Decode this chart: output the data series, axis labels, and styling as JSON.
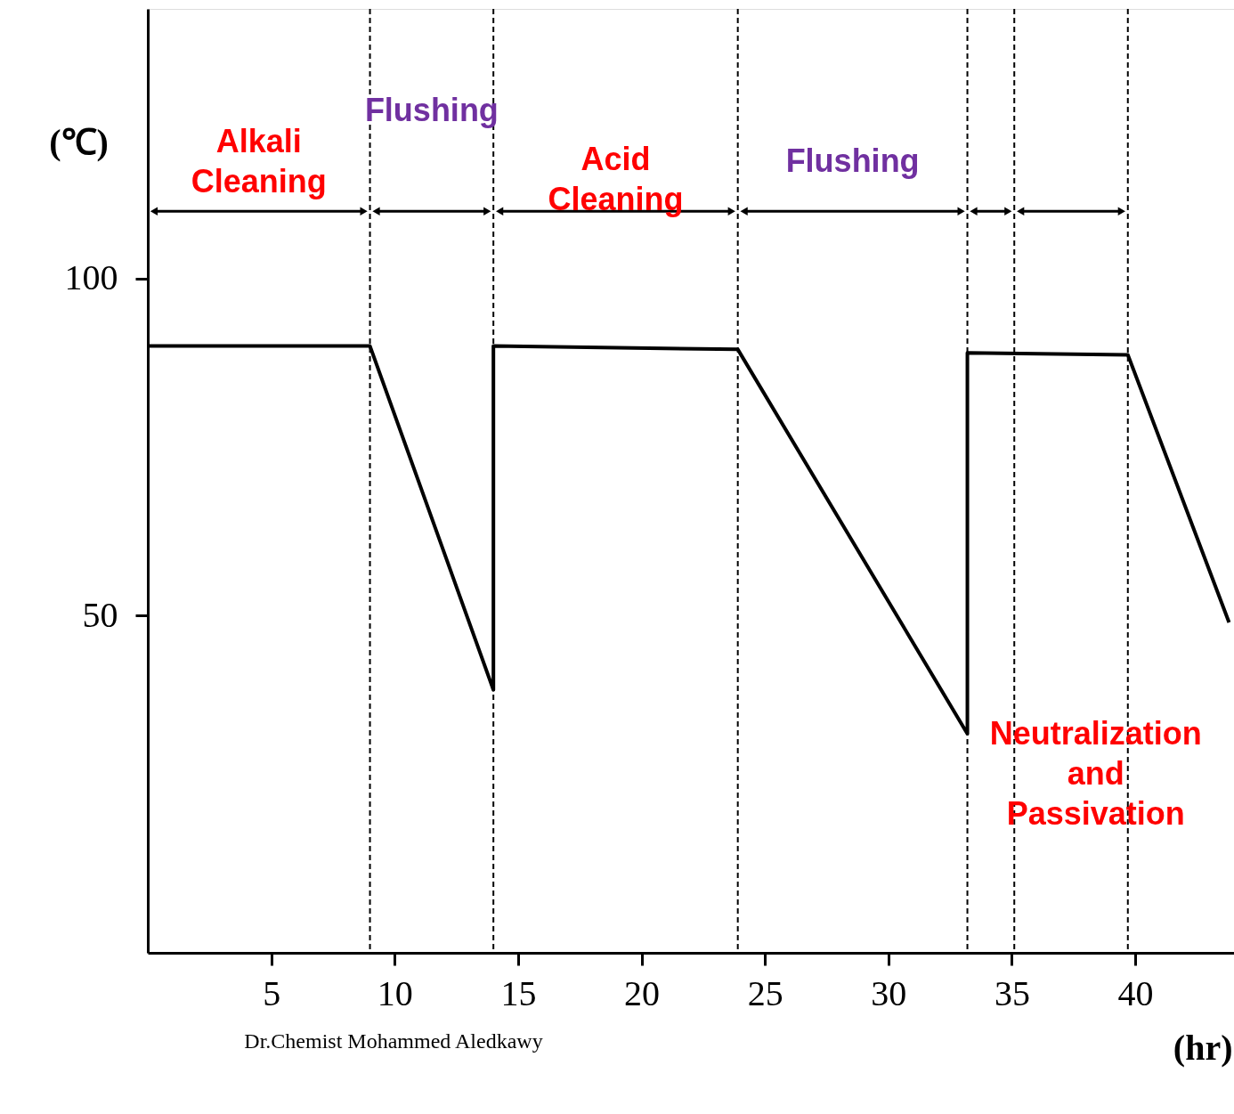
{
  "chart_data": {
    "type": "line",
    "x": [
      0,
      9.0,
      14.0,
      14.0,
      23.9,
      33.2,
      33.2,
      39.7,
      43.8
    ],
    "series": [
      {
        "color": "#000000",
        "values": [
          90,
          90,
          39,
          90,
          89.5,
          32.5,
          89,
          88.7,
          49
        ]
      }
    ],
    "xlabel": "(hr)",
    "ylabel": "(℃)",
    "xlim": [
      0,
      44
    ],
    "ylim": [
      0,
      140
    ],
    "xticks": [
      5,
      10,
      15,
      20,
      25,
      30,
      35,
      40
    ],
    "yticks": [
      50,
      100
    ],
    "grid": false,
    "marker": "none",
    "line_style": "solid",
    "ref_lines": [
      {
        "axis": "x",
        "value": 9.0,
        "line_style": "dashed"
      },
      {
        "axis": "x",
        "value": 14.0,
        "line_style": "dashed"
      },
      {
        "axis": "x",
        "value": 23.9,
        "line_style": "dashed"
      },
      {
        "axis": "x",
        "value": 33.2,
        "line_style": "dashed"
      },
      {
        "axis": "x",
        "value": 35.1,
        "line_style": "dashed"
      },
      {
        "axis": "x",
        "value": 39.7,
        "line_style": "dashed"
      }
    ],
    "annotations": [
      "Alkali\nCleaning",
      "Flushing",
      "Acid\nCleaning",
      "Flushing",
      "Neutralization\nand\nPassivation",
      "Dr.Chemist Mohammed Aledkawy"
    ]
  }
}
